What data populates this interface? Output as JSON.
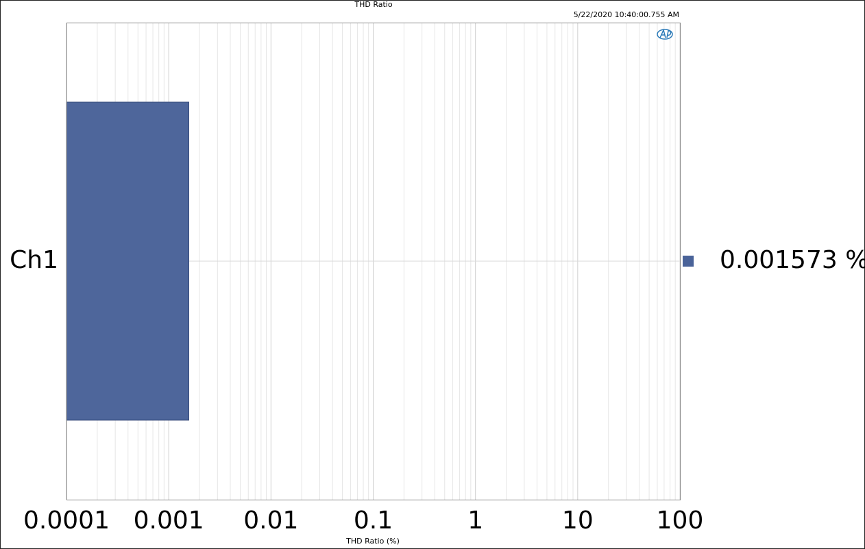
{
  "chart_data": {
    "type": "bar",
    "orientation": "horizontal",
    "title": "THD Ratio",
    "subtitle": "5/22/2020 10:40:00.755 AM",
    "x_label": "THD Ratio (%)",
    "categories": [
      "Ch1"
    ],
    "values": [
      0.001573
    ],
    "value_labels": [
      "0.001573 %"
    ],
    "color": "#4a6399",
    "xscale": "log",
    "xlim": [
      0.0001,
      100
    ],
    "xticks": [
      0.0001,
      0.001,
      0.01,
      0.1,
      1,
      10,
      100
    ],
    "grid": true,
    "minor_grid": true,
    "legend": "right"
  }
}
